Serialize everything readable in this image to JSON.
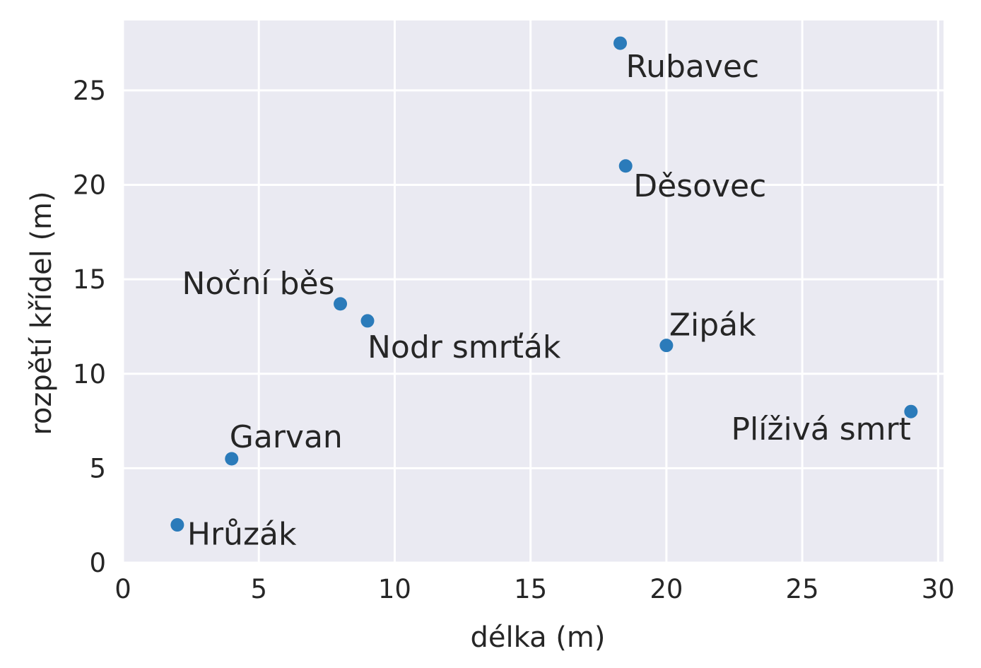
{
  "chart_data": {
    "type": "scatter",
    "title": "",
    "xlabel": "délka (m)",
    "ylabel": "rozpětí křídel (m)",
    "xlim": [
      0,
      30.2
    ],
    "ylim": [
      0,
      28.7
    ],
    "xticks": [
      0,
      5,
      10,
      15,
      20,
      25,
      30
    ],
    "yticks": [
      0,
      5,
      10,
      15,
      20,
      25
    ],
    "grid": true,
    "colors": {
      "background": "#eaeaf2",
      "grid": "#ffffff",
      "point": "#2b7bba",
      "text": "#262626"
    },
    "points": [
      {
        "name": "Rubavec",
        "x": 18.3,
        "y": 27.5
      },
      {
        "name": "Děsovec",
        "x": 18.5,
        "y": 21.0
      },
      {
        "name": "Noční běs",
        "x": 8.0,
        "y": 13.7
      },
      {
        "name": "Nodr smrťák",
        "x": 9.0,
        "y": 12.8
      },
      {
        "name": "Zipák",
        "x": 20.0,
        "y": 11.5
      },
      {
        "name": "Plíživá smrt",
        "x": 29.0,
        "y": 8.0
      },
      {
        "name": "Garvan",
        "x": 4.0,
        "y": 5.5
      },
      {
        "name": "Hrůzák",
        "x": 2.0,
        "y": 2.0
      }
    ]
  }
}
